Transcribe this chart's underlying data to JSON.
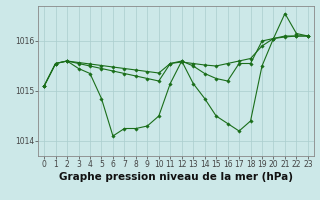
{
  "xlabel": "Graphe pression niveau de la mer (hPa)",
  "x_labels": [
    "0",
    "1",
    "2",
    "3",
    "4",
    "5",
    "6",
    "7",
    "8",
    "9",
    "10",
    "11",
    "12",
    "13",
    "14",
    "15",
    "16",
    "17",
    "18",
    "19",
    "20",
    "21",
    "22",
    "23"
  ],
  "ylim": [
    1013.7,
    1016.7
  ],
  "yticks": [
    1014,
    1015,
    1016
  ],
  "s1": [
    1015.1,
    1015.55,
    1015.6,
    1015.57,
    1015.54,
    1015.51,
    1015.48,
    1015.45,
    1015.42,
    1015.39,
    1015.36,
    1015.55,
    1015.58,
    1015.55,
    1015.52,
    1015.5,
    1015.55,
    1015.6,
    1015.65,
    1015.9,
    1016.05,
    1016.1,
    1016.1,
    1016.1
  ],
  "s2": [
    1015.1,
    1015.55,
    1015.6,
    1015.55,
    1015.5,
    1015.45,
    1015.4,
    1015.35,
    1015.3,
    1015.25,
    1015.2,
    1015.55,
    1015.6,
    1015.5,
    1015.35,
    1015.25,
    1015.2,
    1015.55,
    1015.55,
    1016.0,
    1016.05,
    1016.08,
    1016.1,
    1016.1
  ],
  "s3": [
    1015.1,
    1015.55,
    1015.6,
    1015.45,
    1015.35,
    1014.85,
    1014.1,
    1014.25,
    1014.25,
    1014.3,
    1014.5,
    1015.15,
    1015.6,
    1015.15,
    1014.85,
    1014.5,
    1014.35,
    1014.2,
    1014.4,
    1015.5,
    1016.05,
    1016.55,
    1016.15,
    1016.1
  ],
  "line_color": "#1a6e1a",
  "bg_color": "#cce8e8",
  "grid_color": "#aacece",
  "tick_label_fontsize": 5.5,
  "xlabel_fontsize": 7.5,
  "marker": "D",
  "markersize": 1.8,
  "linewidth": 0.8
}
